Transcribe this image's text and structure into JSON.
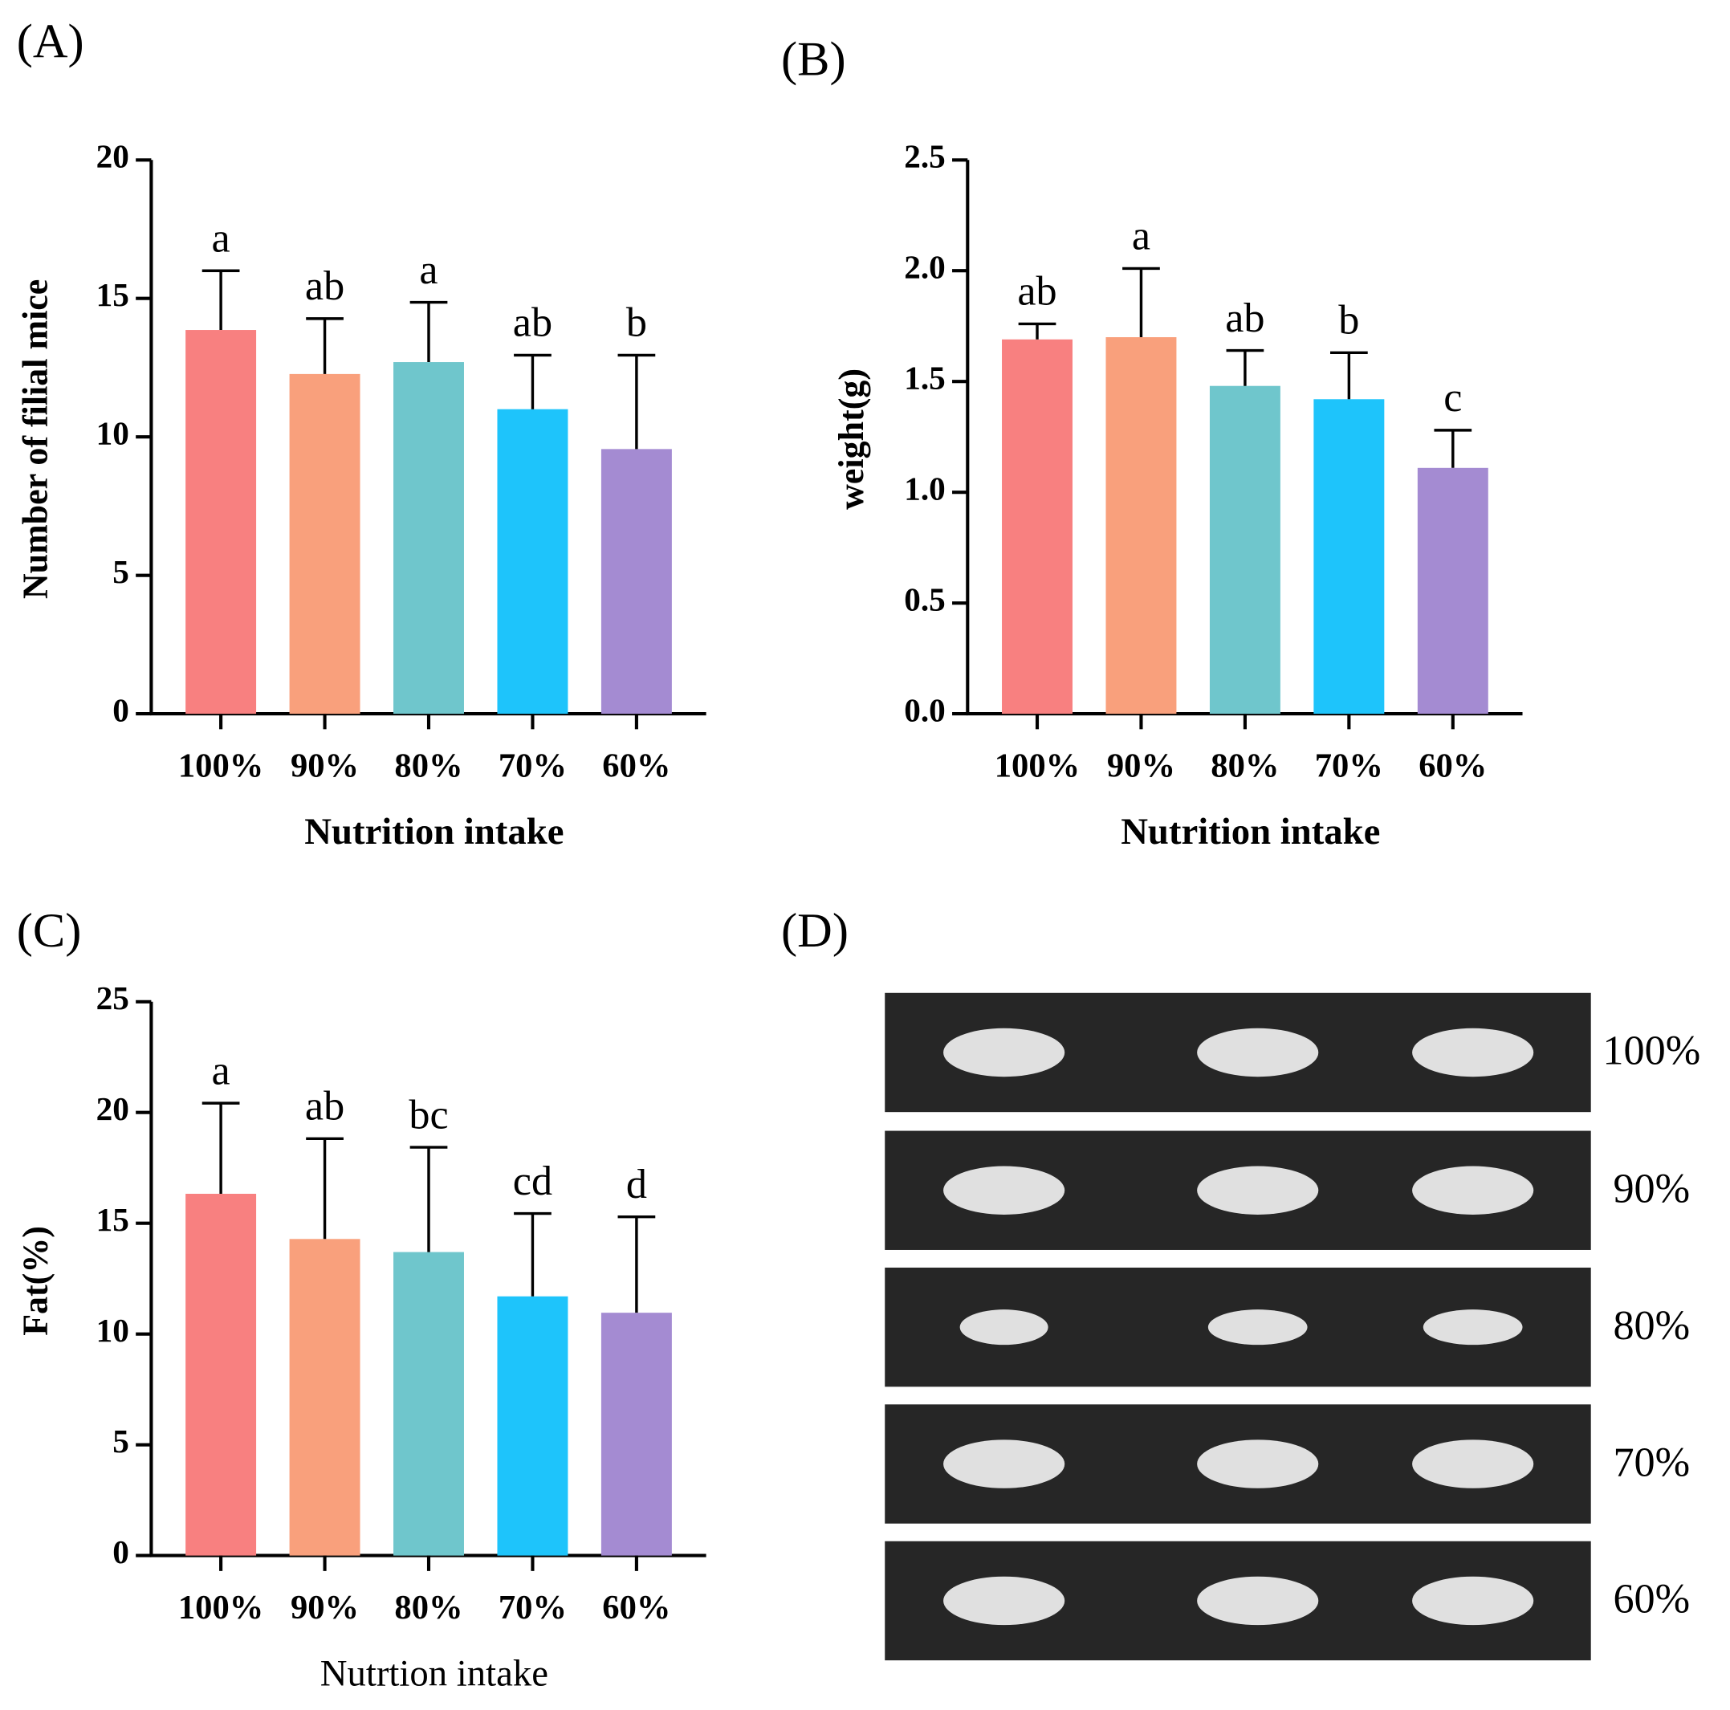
{
  "chart_data": [
    {
      "type": "bar",
      "panel": "(A)",
      "ylabel": "Number of filial mice",
      "xlabel": "Nutrition intake",
      "categories": [
        "100%",
        "90%",
        "80%",
        "70%",
        "60%"
      ],
      "values": [
        13.86,
        12.27,
        12.7,
        11.0,
        9.56
      ],
      "errors": [
        2.14,
        2.0,
        2.16,
        1.95,
        3.39
      ],
      "annotations": [
        "a",
        "ab",
        "a",
        "ab",
        "b"
      ],
      "colors": [
        "#f88080",
        "#f9a07c",
        "#6fc6cc",
        "#1ec4fb",
        "#a48bd2"
      ],
      "ylim": [
        0,
        20
      ],
      "yticks": [
        0,
        5,
        10,
        15,
        20
      ]
    },
    {
      "type": "bar",
      "panel": "(B)",
      "ylabel": "weight(g)",
      "xlabel": "Nutrition intake",
      "categories": [
        "100%",
        "90%",
        "80%",
        "70%",
        "60%"
      ],
      "values": [
        1.69,
        1.7,
        1.48,
        1.42,
        1.11
      ],
      "errors": [
        0.07,
        0.31,
        0.16,
        0.21,
        0.17
      ],
      "annotations": [
        "ab",
        "a",
        "ab",
        "b",
        "c"
      ],
      "colors": [
        "#f88080",
        "#f9a07c",
        "#6fc6cc",
        "#1ec4fb",
        "#a48bd2"
      ],
      "ylim": [
        0,
        2.5
      ],
      "yticks": [
        {
          "value": 0,
          "label": "0.0"
        },
        0.5,
        {
          "value": 1,
          "label": "1.0"
        },
        1.5,
        {
          "value": 2,
          "label": "2.0"
        },
        2.5
      ]
    },
    {
      "type": "bar",
      "panel": "(C)",
      "ylabel": "Fat(%)",
      "xlabel": "Nutrtion intake",
      "categories": [
        "100%",
        "90%",
        "80%",
        "70%",
        "60%"
      ],
      "values": [
        16.33,
        14.29,
        13.7,
        11.7,
        10.96
      ],
      "errors": [
        4.09,
        4.53,
        4.73,
        3.74,
        4.33
      ],
      "annotations": [
        "a",
        "ab",
        "bc",
        "cd",
        "d"
      ],
      "colors": [
        "#f88080",
        "#f9a07c",
        "#6fc6cc",
        "#1ec4fb",
        "#a48bd2"
      ],
      "ylim": [
        0,
        25
      ],
      "yticks": [
        0,
        5,
        10,
        15,
        20,
        25
      ]
    }
  ],
  "image_panel": {
    "panel": "(D)",
    "rows": [
      "100%",
      "90%",
      "80%",
      "70%",
      "60%"
    ]
  }
}
